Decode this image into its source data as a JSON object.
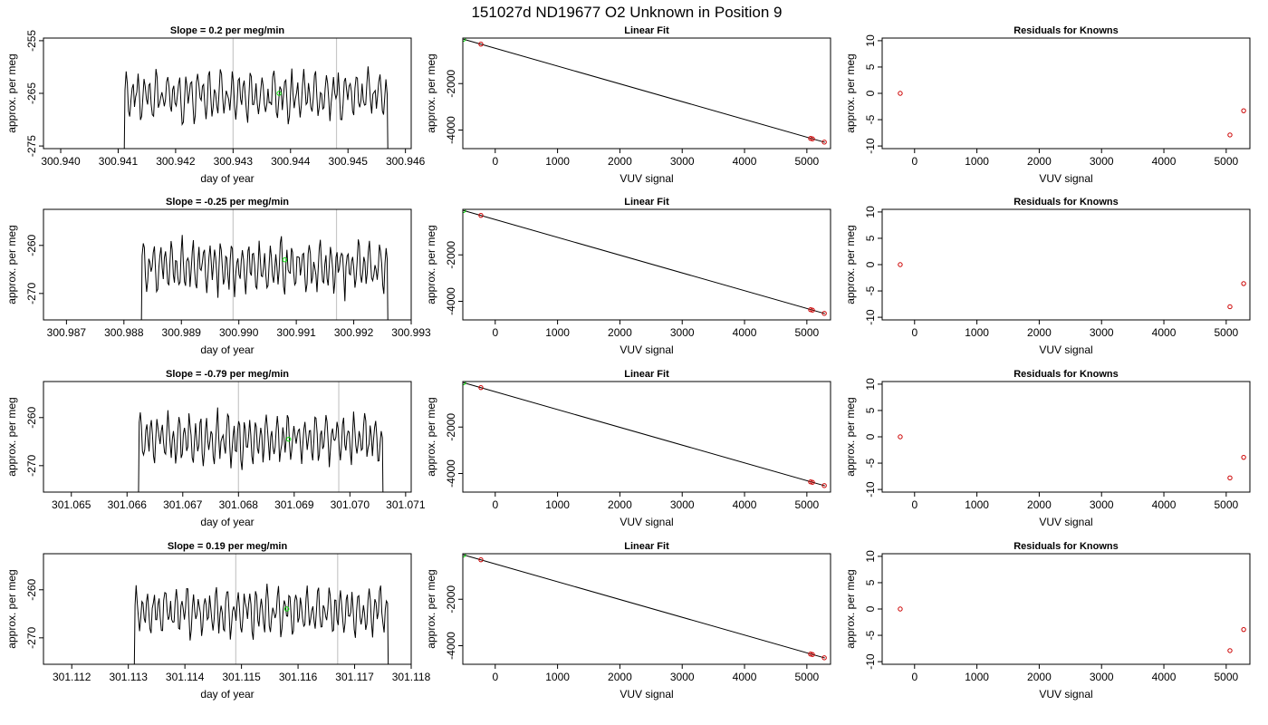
{
  "figure": {
    "title": "151027d      ND19677   O2 Unknown in Position  9"
  },
  "chart_data": [
    {
      "type": "line",
      "title": "Slope =  0.2  per meg/min",
      "xlabel": "day of year",
      "ylabel": "approx. per meg",
      "xlim": [
        300.9397,
        300.9461
      ],
      "ylim": [
        -275.5,
        -254.5
      ],
      "xticks": [
        "300.940",
        "300.941",
        "300.942",
        "300.943",
        "300.944",
        "300.945",
        "300.946"
      ],
      "xtick_values": [
        300.94,
        300.941,
        300.942,
        300.943,
        300.944,
        300.945,
        300.946
      ],
      "yticks": [
        "-275",
        "-265",
        "-255"
      ],
      "ytick_values": [
        -275,
        -265,
        -255
      ],
      "x_start": 300.9411,
      "x_end": 300.9457,
      "vlines": [
        300.943,
        300.9448
      ],
      "marker": {
        "x": 300.9438,
        "y": -265.0,
        "color": "#00dd00"
      }
    },
    {
      "type": "scatter",
      "title": "Linear Fit",
      "xlabel": "VUV signal",
      "ylabel": "approx. per meg",
      "xlim": [
        -520,
        5380
      ],
      "ylim": [
        -4800,
        -40
      ],
      "xticks": [
        "0",
        "1000",
        "2000",
        "3000",
        "4000",
        "5000"
      ],
      "xtick_values": [
        0,
        1000,
        2000,
        3000,
        4000,
        5000
      ],
      "yticks": [
        "-2000",
        "-4000"
      ],
      "ytick_values": [
        -2000,
        -4000
      ],
      "fit_line": {
        "x": [
          -510,
          5290
        ],
        "y": [
          -90,
          -4530
        ]
      },
      "points": [
        {
          "x": -510,
          "y": -90,
          "color": "#00dd00"
        },
        {
          "x": -230,
          "y": -300,
          "color": "#cc0000"
        },
        {
          "x": 5060,
          "y": -4360,
          "color": "#cc0000"
        },
        {
          "x": 5090,
          "y": -4380,
          "color": "#cc0000"
        },
        {
          "x": 5280,
          "y": -4520,
          "color": "#cc0000"
        }
      ]
    },
    {
      "type": "scatter",
      "title": "Residuals for Knowns",
      "xlabel": "VUV signal",
      "ylabel": "approx. per meg",
      "xlim": [
        -520,
        5380
      ],
      "ylim": [
        -10.5,
        10.5
      ],
      "xticks": [
        "0",
        "1000",
        "2000",
        "3000",
        "4000",
        "5000"
      ],
      "xtick_values": [
        0,
        1000,
        2000,
        3000,
        4000,
        5000
      ],
      "yticks": [
        "-10",
        "-5",
        "0",
        "5",
        "10"
      ],
      "ytick_values": [
        -10,
        -5,
        0,
        5,
        10
      ],
      "points": [
        {
          "x": -230,
          "y": 0,
          "color": "#cc0000"
        },
        {
          "x": 5060,
          "y": -7.9,
          "color": "#cc0000"
        },
        {
          "x": 5280,
          "y": -3.3,
          "color": "#cc0000"
        }
      ]
    },
    {
      "type": "line",
      "title": "Slope =  -0.25  per meg/min",
      "xlabel": "day of year",
      "ylabel": "approx. per meg",
      "xlim": [
        300.9866,
        300.993
      ],
      "ylim": [
        -275.5,
        -252.5
      ],
      "xticks": [
        "300.987",
        "300.988",
        "300.989",
        "300.990",
        "300.991",
        "300.992",
        "300.993"
      ],
      "xtick_values": [
        300.987,
        300.988,
        300.989,
        300.99,
        300.991,
        300.992,
        300.993
      ],
      "yticks": [
        "-270",
        "-260"
      ],
      "ytick_values": [
        -270,
        -260
      ],
      "x_start": 300.9883,
      "x_end": 300.9926,
      "vlines": [
        300.9899,
        300.9917
      ],
      "marker": {
        "x": 300.9908,
        "y": -263.0,
        "color": "#00dd00"
      }
    },
    {
      "type": "scatter",
      "title": "Linear Fit",
      "xlabel": "VUV signal",
      "ylabel": "approx. per meg",
      "xlim": [
        -520,
        5380
      ],
      "ylim": [
        -4800,
        -40
      ],
      "xticks": [
        "0",
        "1000",
        "2000",
        "3000",
        "4000",
        "5000"
      ],
      "xtick_values": [
        0,
        1000,
        2000,
        3000,
        4000,
        5000
      ],
      "yticks": [
        "-2000",
        "-4000"
      ],
      "ytick_values": [
        -2000,
        -4000
      ],
      "fit_line": {
        "x": [
          -510,
          5290
        ],
        "y": [
          -90,
          -4530
        ]
      },
      "points": [
        {
          "x": -510,
          "y": -90,
          "color": "#00dd00"
        },
        {
          "x": -230,
          "y": -300,
          "color": "#cc0000"
        },
        {
          "x": 5060,
          "y": -4360,
          "color": "#cc0000"
        },
        {
          "x": 5090,
          "y": -4380,
          "color": "#cc0000"
        },
        {
          "x": 5280,
          "y": -4520,
          "color": "#cc0000"
        }
      ]
    },
    {
      "type": "scatter",
      "title": "Residuals for Knowns",
      "xlabel": "VUV signal",
      "ylabel": "approx. per meg",
      "xlim": [
        -520,
        5380
      ],
      "ylim": [
        -10.5,
        10.5
      ],
      "xticks": [
        "0",
        "1000",
        "2000",
        "3000",
        "4000",
        "5000"
      ],
      "xtick_values": [
        0,
        1000,
        2000,
        3000,
        4000,
        5000
      ],
      "yticks": [
        "-10",
        "-5",
        "0",
        "5",
        "10"
      ],
      "ytick_values": [
        -10,
        -5,
        0,
        5,
        10
      ],
      "points": [
        {
          "x": -230,
          "y": 0,
          "color": "#cc0000"
        },
        {
          "x": 5060,
          "y": -8.0,
          "color": "#cc0000"
        },
        {
          "x": 5280,
          "y": -3.6,
          "color": "#cc0000"
        }
      ]
    },
    {
      "type": "line",
      "title": "Slope =  -0.79  per meg/min",
      "xlabel": "day of year",
      "ylabel": "approx. per meg",
      "xlim": [
        301.0645,
        301.0711
      ],
      "ylim": [
        -275.5,
        -252.5
      ],
      "xticks": [
        "301.065",
        "301.066",
        "301.067",
        "301.068",
        "301.069",
        "301.070",
        "301.071"
      ],
      "xtick_values": [
        301.065,
        301.066,
        301.067,
        301.068,
        301.069,
        301.07,
        301.071
      ],
      "yticks": [
        "-270",
        "-260"
      ],
      "ytick_values": [
        -270,
        -260
      ],
      "x_start": 301.0662,
      "x_end": 301.0706,
      "vlines": [
        301.068,
        301.0698
      ],
      "marker": {
        "x": 301.0689,
        "y": -264.5,
        "color": "#00dd00"
      }
    },
    {
      "type": "scatter",
      "title": "Linear Fit",
      "xlabel": "VUV signal",
      "ylabel": "approx. per meg",
      "xlim": [
        -520,
        5380
      ],
      "ylim": [
        -4800,
        -40
      ],
      "xticks": [
        "0",
        "1000",
        "2000",
        "3000",
        "4000",
        "5000"
      ],
      "xtick_values": [
        0,
        1000,
        2000,
        3000,
        4000,
        5000
      ],
      "yticks": [
        "-2000",
        "-4000"
      ],
      "ytick_values": [
        -2000,
        -4000
      ],
      "fit_line": {
        "x": [
          -510,
          5290
        ],
        "y": [
          -90,
          -4530
        ]
      },
      "points": [
        {
          "x": -510,
          "y": -90,
          "color": "#00dd00"
        },
        {
          "x": -230,
          "y": -300,
          "color": "#cc0000"
        },
        {
          "x": 5060,
          "y": -4360,
          "color": "#cc0000"
        },
        {
          "x": 5090,
          "y": -4380,
          "color": "#cc0000"
        },
        {
          "x": 5280,
          "y": -4520,
          "color": "#cc0000"
        }
      ]
    },
    {
      "type": "scatter",
      "title": "Residuals for Knowns",
      "xlabel": "VUV signal",
      "ylabel": "approx. per meg",
      "xlim": [
        -520,
        5380
      ],
      "ylim": [
        -10.5,
        10.5
      ],
      "xticks": [
        "0",
        "1000",
        "2000",
        "3000",
        "4000",
        "5000"
      ],
      "xtick_values": [
        0,
        1000,
        2000,
        3000,
        4000,
        5000
      ],
      "yticks": [
        "-10",
        "-5",
        "0",
        "5",
        "10"
      ],
      "ytick_values": [
        -10,
        -5,
        0,
        5,
        10
      ],
      "points": [
        {
          "x": -230,
          "y": 0,
          "color": "#cc0000"
        },
        {
          "x": 5060,
          "y": -7.8,
          "color": "#cc0000"
        },
        {
          "x": 5280,
          "y": -3.9,
          "color": "#cc0000"
        }
      ]
    },
    {
      "type": "line",
      "title": "Slope =  0.19  per meg/min",
      "xlabel": "day of year",
      "ylabel": "approx. per meg",
      "xlim": [
        301.1115,
        301.118
      ],
      "ylim": [
        -275.5,
        -252.5
      ],
      "xticks": [
        "301.112",
        "301.113",
        "301.114",
        "301.115",
        "301.116",
        "301.117",
        "301.118"
      ],
      "xtick_values": [
        301.112,
        301.113,
        301.114,
        301.115,
        301.116,
        301.117,
        301.118
      ],
      "yticks": [
        "-270",
        "-260"
      ],
      "ytick_values": [
        -270,
        -260
      ],
      "x_start": 301.1131,
      "x_end": 301.1176,
      "vlines": [
        301.1149,
        301.1167
      ],
      "marker": {
        "x": 301.1158,
        "y": -264.0,
        "color": "#00dd00"
      }
    },
    {
      "type": "scatter",
      "title": "Linear Fit",
      "xlabel": "VUV signal",
      "ylabel": "approx. per meg",
      "xlim": [
        -520,
        5380
      ],
      "ylim": [
        -4800,
        -40
      ],
      "xticks": [
        "0",
        "1000",
        "2000",
        "3000",
        "4000",
        "5000"
      ],
      "xtick_values": [
        0,
        1000,
        2000,
        3000,
        4000,
        5000
      ],
      "yticks": [
        "-2000",
        "-4000"
      ],
      "ytick_values": [
        -2000,
        -4000
      ],
      "fit_line": {
        "x": [
          -510,
          5290
        ],
        "y": [
          -90,
          -4530
        ]
      },
      "points": [
        {
          "x": -510,
          "y": -90,
          "color": "#00dd00"
        },
        {
          "x": -230,
          "y": -300,
          "color": "#cc0000"
        },
        {
          "x": 5060,
          "y": -4360,
          "color": "#cc0000"
        },
        {
          "x": 5090,
          "y": -4380,
          "color": "#cc0000"
        },
        {
          "x": 5280,
          "y": -4520,
          "color": "#cc0000"
        }
      ]
    },
    {
      "type": "scatter",
      "title": "Residuals for Knowns",
      "xlabel": "VUV signal",
      "ylabel": "approx. per meg",
      "xlim": [
        -520,
        5380
      ],
      "ylim": [
        -10.5,
        10.5
      ],
      "xticks": [
        "0",
        "1000",
        "2000",
        "3000",
        "4000",
        "5000"
      ],
      "xtick_values": [
        0,
        1000,
        2000,
        3000,
        4000,
        5000
      ],
      "yticks": [
        "-10",
        "-5",
        "0",
        "5",
        "10"
      ],
      "ytick_values": [
        -10,
        -5,
        0,
        5,
        10
      ],
      "points": [
        {
          "x": -230,
          "y": 0,
          "color": "#cc0000"
        },
        {
          "x": 5060,
          "y": -7.9,
          "color": "#cc0000"
        },
        {
          "x": 5280,
          "y": -3.9,
          "color": "#cc0000"
        }
      ]
    }
  ]
}
